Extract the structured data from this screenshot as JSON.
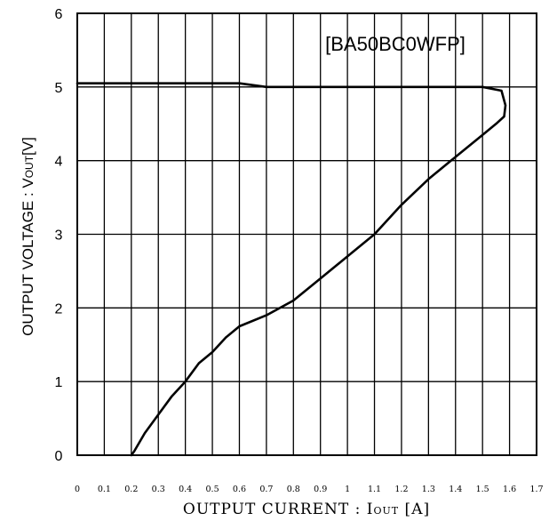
{
  "chart_data": {
    "type": "line",
    "title": "[BA50BC0WFP]",
    "ylabel": "OUTPUT VOLTAGE : V",
    "ylabel_sub": "OUT",
    "ylabel_unit": "[V]",
    "xlabel": "OUTPUT CURRENT : I",
    "xlabel_sub": "OUT",
    "xlabel_unit": " [A]",
    "xlim": [
      0,
      1.7
    ],
    "ylim": [
      0,
      6
    ],
    "grid": true,
    "x_ticks": [
      "0",
      "0.1",
      "0.2",
      "0.3",
      "0.4",
      "0.5",
      "0.6",
      "0.7",
      "0.8",
      "0.9",
      "1",
      "1.1",
      "1.2",
      "1.3",
      "1.4",
      "1.5",
      "1.6",
      "1.7"
    ],
    "y_ticks": [
      "0",
      "1",
      "2",
      "3",
      "4",
      "5",
      "6"
    ],
    "series": [
      {
        "x": [
          0.0,
          0.3,
          0.6,
          0.7,
          1.0,
          1.2,
          1.5,
          1.57,
          1.585,
          1.58,
          1.55,
          1.5,
          1.4,
          1.3,
          1.2,
          1.1,
          1.0,
          0.9,
          0.8,
          0.7,
          0.6,
          0.55,
          0.5,
          0.45,
          0.4,
          0.35,
          0.3,
          0.25,
          0.21,
          0.2
        ],
        "y": [
          5.05,
          5.05,
          5.05,
          5.0,
          5.0,
          5.0,
          5.0,
          4.95,
          4.75,
          4.6,
          4.5,
          4.35,
          4.05,
          3.75,
          3.4,
          3.0,
          2.7,
          2.4,
          2.1,
          1.9,
          1.75,
          1.6,
          1.4,
          1.25,
          1.0,
          0.8,
          0.55,
          0.3,
          0.05,
          0.0
        ]
      }
    ]
  }
}
